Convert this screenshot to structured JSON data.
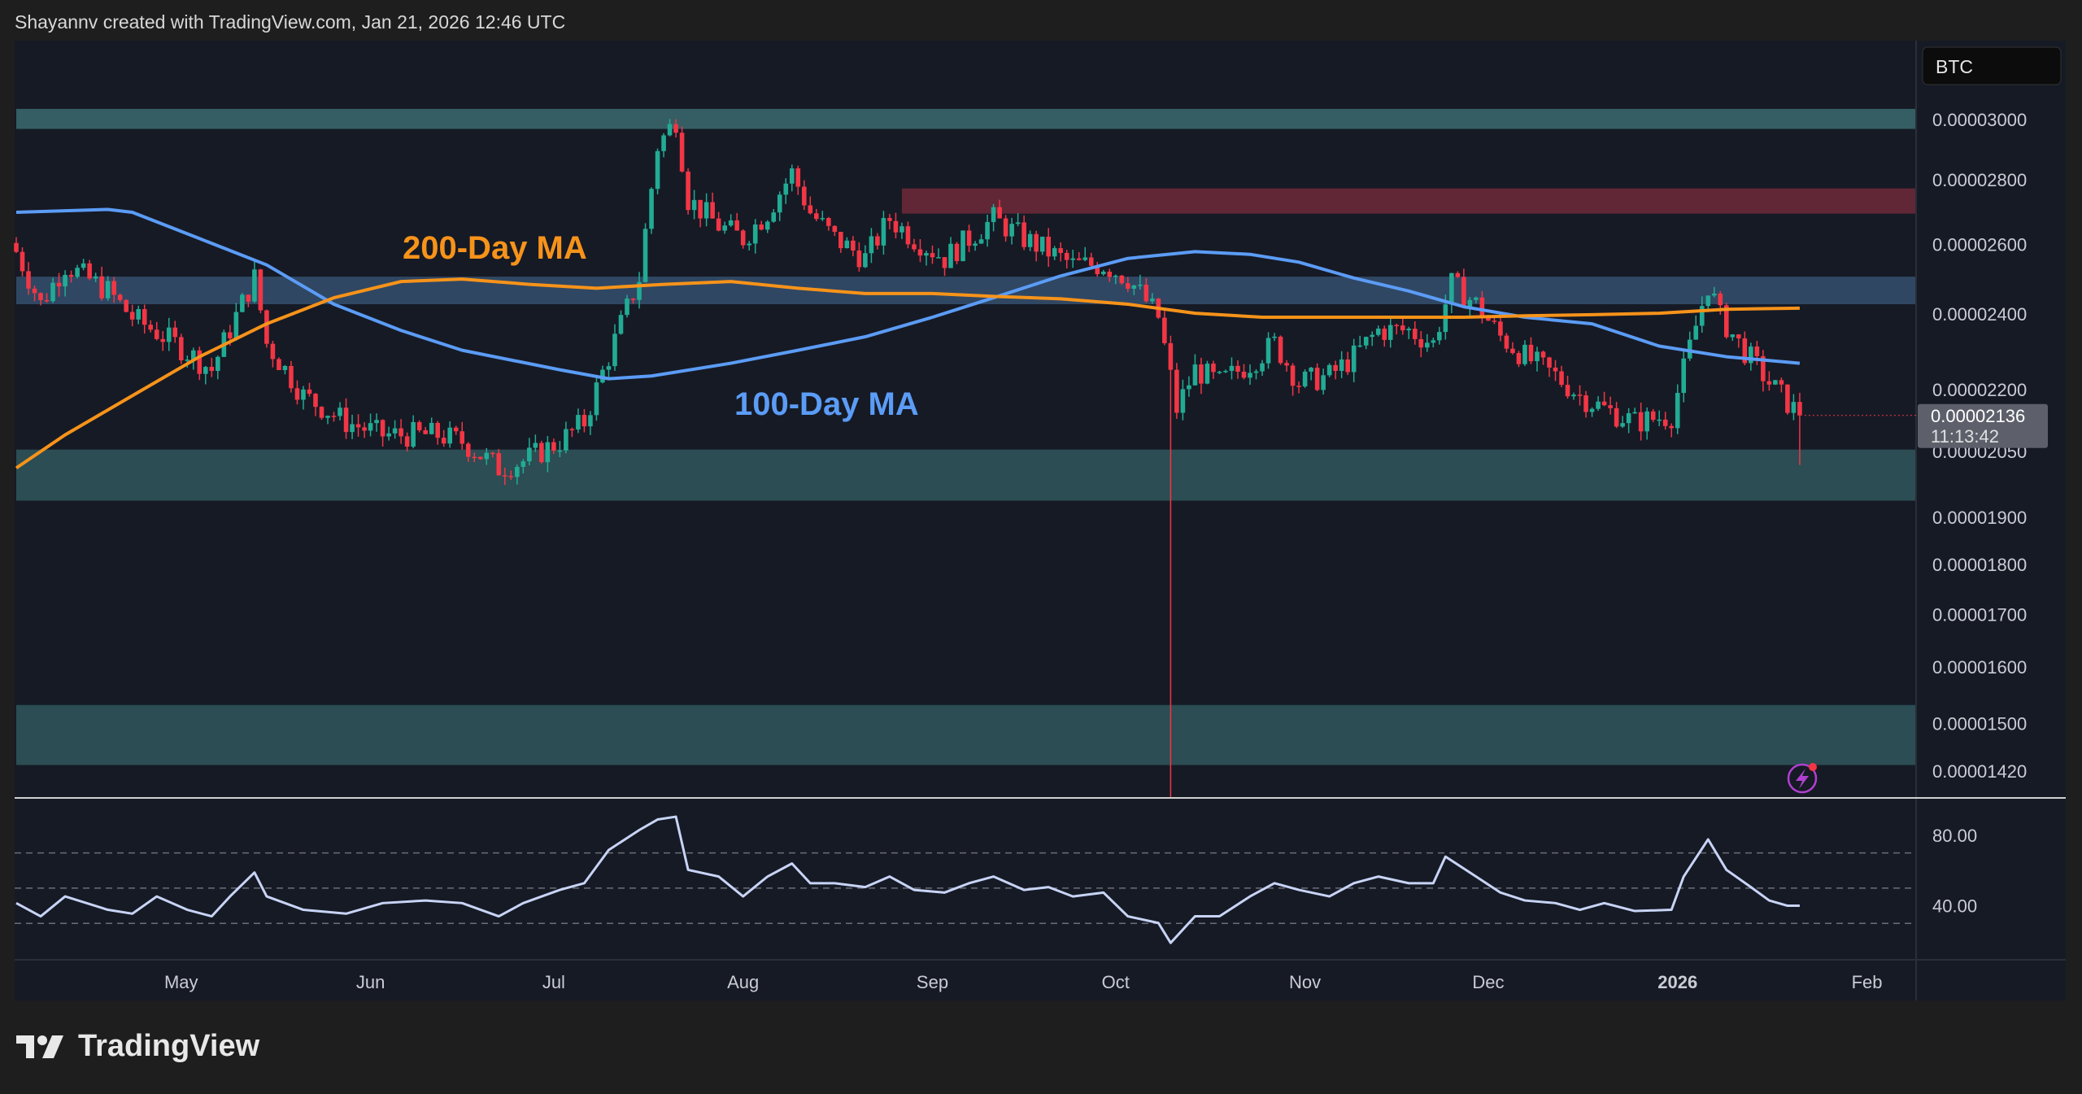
{
  "header": {
    "attribution": "Shayannv created with TradingView.com, Jan 21, 2026 12:46 UTC"
  },
  "logo": {
    "text": "TradingView"
  },
  "symbol_badge": "BTC",
  "annotations": {
    "ma200_label": "200-Day MA",
    "ma100_label": "100-Day MA"
  },
  "colors": {
    "bg": "#161a25",
    "up": "#22ab94",
    "down": "#f23645",
    "ma100": "#5b9cf6",
    "ma200": "#f7931a",
    "rsi": "#c8d4f5"
  },
  "chart_data": [
    {
      "type": "candlestick",
      "title": "BTC-quoted price (daily)",
      "value_scale": 1e-08,
      "start_date": "2025-04-04",
      "scale": "log",
      "ylim": [
        1400,
        3150
      ],
      "y_ticks": [
        {
          "v": 3000,
          "label": "0.00003000"
        },
        {
          "v": 2800,
          "label": "0.00002800"
        },
        {
          "v": 2600,
          "label": "0.00002600"
        },
        {
          "v": 2400,
          "label": "0.00002400"
        },
        {
          "v": 2200,
          "label": "0.00002200"
        },
        {
          "v": 2050,
          "label": "0.00002050"
        },
        {
          "v": 1900,
          "label": "0.00001900"
        },
        {
          "v": 1800,
          "label": "0.00001800"
        },
        {
          "v": 1700,
          "label": "0.00001700"
        },
        {
          "v": 1600,
          "label": "0.00001600"
        },
        {
          "v": 1500,
          "label": "0.00001500"
        },
        {
          "v": 1420,
          "label": "0.00001420"
        }
      ],
      "x_ticks": [
        {
          "day": 27,
          "label": "May"
        },
        {
          "day": 58,
          "label": "Jun"
        },
        {
          "day": 88,
          "label": "Jul"
        },
        {
          "day": 119,
          "label": "Aug"
        },
        {
          "day": 150,
          "label": "Sep"
        },
        {
          "day": 180,
          "label": "Oct"
        },
        {
          "day": 211,
          "label": "Nov"
        },
        {
          "day": 241,
          "label": "Dec"
        },
        {
          "day": 272,
          "label": "2026",
          "bold": true
        },
        {
          "day": 303,
          "label": "Feb"
        }
      ],
      "last_price": {
        "value": 2136,
        "label": "0.00002136",
        "countdown": "11:13:42"
      },
      "close_path": [
        [
          0,
          2578
        ],
        [
          4,
          2427
        ],
        [
          8,
          2539
        ],
        [
          15,
          2464
        ],
        [
          19,
          2391
        ],
        [
          26,
          2320
        ],
        [
          32,
          2251
        ],
        [
          39,
          2501
        ],
        [
          41,
          2320
        ],
        [
          47,
          2185
        ],
        [
          54,
          2120
        ],
        [
          60,
          2089
        ],
        [
          69,
          2089
        ],
        [
          73,
          2073
        ],
        [
          79,
          2011
        ],
        [
          83,
          2027
        ],
        [
          89,
          2073
        ],
        [
          93,
          2120
        ],
        [
          97,
          2285
        ],
        [
          102,
          2501
        ],
        [
          105,
          2910
        ],
        [
          108,
          3000
        ],
        [
          110,
          2738
        ],
        [
          115,
          2656
        ],
        [
          119,
          2617
        ],
        [
          123,
          2697
        ],
        [
          127,
          2822
        ],
        [
          130,
          2697
        ],
        [
          134,
          2617
        ],
        [
          139,
          2558
        ],
        [
          143,
          2677
        ],
        [
          147,
          2617
        ],
        [
          152,
          2558
        ],
        [
          156,
          2617
        ],
        [
          160,
          2677
        ],
        [
          165,
          2617
        ],
        [
          169,
          2578
        ],
        [
          173,
          2539
        ],
        [
          178,
          2539
        ],
        [
          182,
          2501
        ],
        [
          187,
          2391
        ],
        [
          190,
          2152
        ],
        [
          193,
          2251
        ],
        [
          197,
          2218
        ],
        [
          202,
          2268
        ],
        [
          206,
          2320
        ],
        [
          210,
          2218
        ],
        [
          215,
          2235
        ],
        [
          219,
          2285
        ],
        [
          223,
          2355
        ],
        [
          228,
          2355
        ],
        [
          232,
          2320
        ],
        [
          235,
          2483
        ],
        [
          239,
          2427
        ],
        [
          243,
          2338
        ],
        [
          247,
          2285
        ],
        [
          252,
          2235
        ],
        [
          256,
          2185
        ],
        [
          260,
          2152
        ],
        [
          265,
          2120
        ],
        [
          271,
          2136
        ],
        [
          273,
          2251
        ],
        [
          277,
          2483
        ],
        [
          279,
          2391
        ],
        [
          282,
          2320
        ],
        [
          287,
          2218
        ],
        [
          290,
          2168
        ],
        [
          292,
          2136
        ]
      ],
      "crash_wick": {
        "day": 189,
        "low_below_axis": true
      },
      "series": [
        {
          "name": "100-Day MA",
          "color": "#5b9cf6",
          "points": [
            [
              0,
              2697
            ],
            [
              15,
              2706
            ],
            [
              19,
              2697
            ],
            [
              30,
              2617
            ],
            [
              41,
              2539
            ],
            [
              52,
              2427
            ],
            [
              63,
              2355
            ],
            [
              73,
              2302
            ],
            [
              89,
              2251
            ],
            [
              97,
              2228
            ],
            [
              104,
              2235
            ],
            [
              117,
              2268
            ],
            [
              128,
              2302
            ],
            [
              139,
              2338
            ],
            [
              150,
              2391
            ],
            [
              160,
              2445
            ],
            [
              171,
              2507
            ],
            [
              182,
              2558
            ],
            [
              193,
              2578
            ],
            [
              202,
              2570
            ],
            [
              210,
              2547
            ],
            [
              219,
              2501
            ],
            [
              228,
              2464
            ],
            [
              237,
              2420
            ],
            [
              247,
              2391
            ],
            [
              258,
              2373
            ],
            [
              269,
              2313
            ],
            [
              280,
              2285
            ],
            [
              292,
              2268
            ]
          ]
        },
        {
          "name": "200-Day MA",
          "color": "#f7931a",
          "points": [
            [
              0,
              2011
            ],
            [
              8,
              2089
            ],
            [
              19,
              2185
            ],
            [
              30,
              2285
            ],
            [
              41,
              2373
            ],
            [
              52,
              2445
            ],
            [
              63,
              2491
            ],
            [
              73,
              2498
            ],
            [
              84,
              2483
            ],
            [
              95,
              2472
            ],
            [
              106,
              2483
            ],
            [
              117,
              2491
            ],
            [
              128,
              2472
            ],
            [
              139,
              2457
            ],
            [
              150,
              2457
            ],
            [
              160,
              2449
            ],
            [
              171,
              2442
            ],
            [
              182,
              2427
            ],
            [
              193,
              2402
            ],
            [
              204,
              2391
            ],
            [
              215,
              2391
            ],
            [
              226,
              2391
            ],
            [
              237,
              2391
            ],
            [
              247,
              2395
            ],
            [
              258,
              2398
            ],
            [
              269,
              2402
            ],
            [
              280,
              2413
            ],
            [
              292,
              2416
            ]
          ]
        }
      ],
      "zones": [
        {
          "name": "resistance-top",
          "from": 2968,
          "to": 3037,
          "start_day": 0,
          "color": "#3a6b70"
        },
        {
          "name": "supply-red",
          "from": 2693,
          "to": 2772,
          "start_day": 145,
          "color": "#6e2a3a"
        },
        {
          "name": "mid-blue",
          "from": 2427,
          "to": 2505,
          "start_day": 0,
          "color": "#34506f"
        },
        {
          "name": "support-main",
          "from": 1937,
          "to": 2054,
          "start_day": 0,
          "color": "#2f575c"
        },
        {
          "name": "support-low",
          "from": 1430,
          "to": 1532,
          "start_day": 0,
          "color": "#2f575c"
        }
      ]
    },
    {
      "type": "line",
      "title": "RSI",
      "ylim": [
        10,
        100
      ],
      "y_ticks": [
        {
          "v": 80,
          "label": "80.00"
        },
        {
          "v": 40,
          "label": "40.00"
        }
      ],
      "dashed_levels": [
        70,
        50,
        30
      ],
      "points": [
        [
          0,
          41.5
        ],
        [
          4,
          34
        ],
        [
          8,
          45.3
        ],
        [
          15,
          37.7
        ],
        [
          19,
          35.5
        ],
        [
          23,
          45.3
        ],
        [
          28,
          37.7
        ],
        [
          32,
          34
        ],
        [
          35,
          45.3
        ],
        [
          39,
          58.9
        ],
        [
          41,
          45.3
        ],
        [
          47,
          37.7
        ],
        [
          54,
          35.5
        ],
        [
          60,
          41.5
        ],
        [
          67,
          43
        ],
        [
          73,
          41.5
        ],
        [
          79,
          34
        ],
        [
          83,
          41.5
        ],
        [
          89,
          49
        ],
        [
          93,
          52.8
        ],
        [
          97,
          71.7
        ],
        [
          102,
          83
        ],
        [
          105,
          89
        ],
        [
          108,
          90.6
        ],
        [
          110,
          60.4
        ],
        [
          115,
          56.6
        ],
        [
          119,
          45.3
        ],
        [
          123,
          56.6
        ],
        [
          127,
          64
        ],
        [
          130,
          52.8
        ],
        [
          134,
          52.8
        ],
        [
          139,
          50.6
        ],
        [
          143,
          56.6
        ],
        [
          147,
          49
        ],
        [
          152,
          47.5
        ],
        [
          156,
          52.8
        ],
        [
          160,
          56.6
        ],
        [
          165,
          49
        ],
        [
          169,
          50.6
        ],
        [
          173,
          45.3
        ],
        [
          178,
          47.5
        ],
        [
          182,
          34
        ],
        [
          187,
          30.2
        ],
        [
          189,
          18.9
        ],
        [
          193,
          34
        ],
        [
          197,
          34
        ],
        [
          202,
          45.3
        ],
        [
          206,
          52.8
        ],
        [
          210,
          49
        ],
        [
          215,
          45.3
        ],
        [
          219,
          52.8
        ],
        [
          223,
          56.6
        ],
        [
          228,
          52.8
        ],
        [
          232,
          52.8
        ],
        [
          234,
          67.9
        ],
        [
          239,
          56.6
        ],
        [
          243,
          47.5
        ],
        [
          247,
          43
        ],
        [
          252,
          41.5
        ],
        [
          256,
          37.7
        ],
        [
          260,
          41.5
        ],
        [
          265,
          37
        ],
        [
          271,
          37.7
        ],
        [
          273,
          56.6
        ],
        [
          277,
          77.7
        ],
        [
          280,
          60.4
        ],
        [
          284,
          50.6
        ],
        [
          287,
          43
        ],
        [
          290,
          40
        ],
        [
          292,
          40
        ]
      ]
    }
  ]
}
